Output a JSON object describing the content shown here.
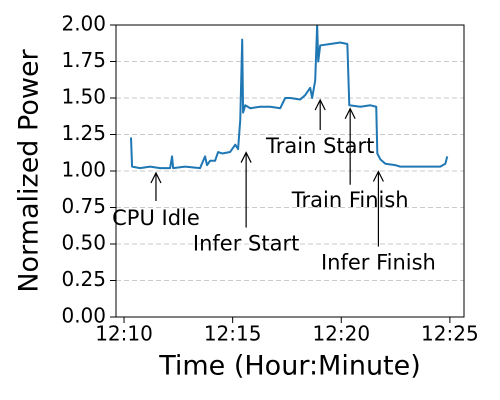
{
  "chart_data": {
    "type": "line",
    "xlabel": "Time (Hour:Minute)",
    "ylabel": "Normalized Power",
    "x": [
      10.32,
      10.37,
      10.74,
      11.2,
      11.66,
      12.12,
      12.21,
      12.26,
      12.81,
      13.5,
      13.73,
      13.82,
      13.96,
      14.19,
      14.33,
      14.52,
      14.88,
      15.12,
      15.25,
      15.35,
      15.44,
      15.48,
      15.58,
      15.81,
      16.27,
      16.73,
      17.19,
      17.42,
      17.65,
      18.11,
      18.34,
      18.57,
      18.66,
      18.8,
      18.89,
      18.94,
      19.03,
      19.49,
      19.95,
      20.28,
      20.37,
      20.88,
      21.34,
      21.61,
      21.66,
      21.8,
      22.03,
      22.49,
      22.72,
      23.64,
      24.56,
      24.79,
      24.88
    ],
    "series": [
      {
        "color": "#1f77b4",
        "values": [
          1.23,
          1.03,
          1.02,
          1.03,
          1.02,
          1.02,
          1.1,
          1.02,
          1.03,
          1.02,
          1.1,
          1.04,
          1.07,
          1.07,
          1.13,
          1.12,
          1.13,
          1.18,
          1.15,
          1.35,
          1.9,
          1.4,
          1.45,
          1.43,
          1.44,
          1.44,
          1.43,
          1.5,
          1.5,
          1.49,
          1.52,
          1.57,
          1.5,
          1.62,
          2.0,
          1.75,
          1.86,
          1.87,
          1.88,
          1.87,
          1.45,
          1.44,
          1.45,
          1.44,
          1.12,
          1.08,
          1.05,
          1.04,
          1.03,
          1.03,
          1.03,
          1.05,
          1.1
        ]
      }
    ],
    "xlim": [
      9.63,
      25.65
    ],
    "xticks": [
      {
        "value": 10,
        "label": "12:10"
      },
      {
        "value": 15,
        "label": "12:15"
      },
      {
        "value": 20,
        "label": "12:20"
      },
      {
        "value": 25,
        "label": "12:25"
      }
    ],
    "ylim": [
      0,
      2
    ],
    "yticks": [
      {
        "value": 0,
        "label": "0.00"
      },
      {
        "value": 0.25,
        "label": "0.25"
      },
      {
        "value": 0.5,
        "label": "0.50"
      },
      {
        "value": 0.75,
        "label": "0.75"
      },
      {
        "value": 1,
        "label": "1.00"
      },
      {
        "value": 1.25,
        "label": "1.25"
      },
      {
        "value": 1.5,
        "label": "1.50"
      },
      {
        "value": 1.75,
        "label": "1.75"
      },
      {
        "value": 2,
        "label": "2.00"
      }
    ],
    "grid": "y",
    "annotations": [
      {
        "text": "CPU Idle",
        "x": 11.47,
        "y": 1.0
      },
      {
        "text": "Infer Start",
        "x": 15.62,
        "y": 1.14
      },
      {
        "text": "Train Start",
        "x": 19.03,
        "y": 1.5
      },
      {
        "text": "Train Finish",
        "x": 20.41,
        "y": 1.44
      },
      {
        "text": "Infer Finish",
        "x": 21.71,
        "y": 1.01
      }
    ]
  }
}
